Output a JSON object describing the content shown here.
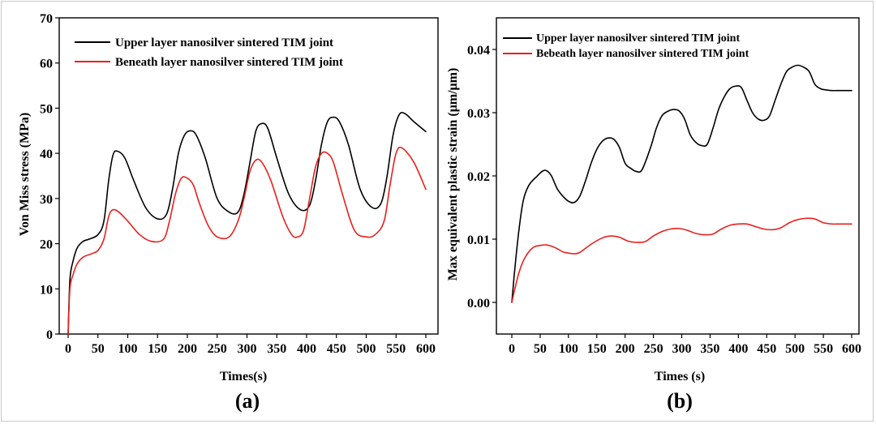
{
  "chart_data": [
    {
      "type": "line",
      "panel_label": "(a)",
      "xlabel": "Times(s)",
      "ylabel": "Von Miss stress (MPa)",
      "xlim": [
        0,
        600
      ],
      "ylim": [
        0,
        70
      ],
      "xticks": [
        "0",
        "50",
        "100",
        "150",
        "200",
        "250",
        "300",
        "350",
        "400",
        "450",
        "500",
        "550",
        "600"
      ],
      "yticks": [
        "0",
        "10",
        "20",
        "30",
        "40",
        "50",
        "60",
        "70"
      ],
      "legend_position": "top",
      "series": [
        {
          "name": "Upper layer nanosilver sintered TIM joint",
          "color": "#000000",
          "x": [
            0,
            3,
            8,
            15,
            25,
            35,
            50,
            60,
            68,
            75,
            82,
            95,
            110,
            130,
            150,
            165,
            175,
            185,
            195,
            205,
            215,
            230,
            250,
            270,
            285,
            295,
            305,
            315,
            325,
            335,
            350,
            370,
            390,
            405,
            415,
            425,
            435,
            445,
            455,
            470,
            490,
            510,
            525,
            535,
            545,
            555,
            565,
            580,
            600
          ],
          "y": [
            0,
            12,
            16,
            19,
            20.5,
            21,
            22,
            25,
            34,
            39.5,
            40.5,
            39,
            34,
            28,
            25.5,
            26.5,
            32,
            40,
            44,
            45,
            44,
            39,
            30,
            27,
            27,
            31,
            38,
            45,
            46.6,
            45.5,
            39,
            31,
            27.5,
            28.5,
            34,
            42,
            47,
            48,
            47,
            42,
            32,
            28,
            29,
            35,
            44,
            48.5,
            48.8,
            47,
            44.8
          ]
        },
        {
          "name": "Beneath layer nanosilver sintered TIM joint",
          "color": "#e8201e",
          "x": [
            0,
            3,
            8,
            15,
            25,
            40,
            50,
            60,
            68,
            75,
            85,
            100,
            120,
            140,
            160,
            170,
            180,
            190,
            200,
            210,
            220,
            235,
            250,
            270,
            285,
            295,
            305,
            315,
            325,
            340,
            360,
            375,
            385,
            395,
            405,
            415,
            425,
            435,
            445,
            460,
            480,
            500,
            515,
            530,
            540,
            550,
            560,
            580,
            600
          ],
          "y": [
            0,
            10,
            13,
            15.5,
            17,
            17.8,
            18.5,
            21,
            26,
            27.5,
            27,
            25,
            22,
            20.5,
            21,
            25,
            31,
            34.5,
            34.5,
            33,
            29,
            24,
            21.5,
            21.5,
            25,
            30,
            36,
            38.5,
            38,
            34,
            26,
            22,
            21.5,
            23,
            30,
            37,
            40,
            40,
            38,
            31,
            23,
            21.5,
            22,
            25,
            33,
            40,
            41.2,
            38,
            32
          ]
        }
      ]
    },
    {
      "type": "line",
      "panel_label": "(b)",
      "xlabel": "Times (s)",
      "ylabel": "Max equivalent plastic strain (μm/μm)",
      "xlim": [
        0,
        600
      ],
      "ylim": [
        -0.005,
        0.045
      ],
      "xticks": [
        "0",
        "50",
        "100",
        "150",
        "200",
        "250",
        "300",
        "350",
        "400",
        "450",
        "500",
        "550",
        "600"
      ],
      "yticks": [
        "0.00",
        "0.01",
        "0.02",
        "0.03",
        "0.04"
      ],
      "legend_position": "top-left",
      "series": [
        {
          "name": "Upper layer nanosilver sintered TIM joint",
          "color": "#000000",
          "x": [
            0,
            5,
            12,
            20,
            30,
            45,
            55,
            62,
            70,
            80,
            90,
            100,
            110,
            120,
            130,
            140,
            150,
            160,
            170,
            180,
            190,
            200,
            210,
            220,
            230,
            245,
            255,
            265,
            275,
            285,
            295,
            305,
            315,
            325,
            335,
            345,
            355,
            365,
            375,
            385,
            395,
            405,
            415,
            425,
            435,
            445,
            455,
            465,
            475,
            485,
            495,
            505,
            515,
            525,
            535,
            545,
            555,
            565,
            580,
            600
          ],
          "y": [
            0,
            0.005,
            0.011,
            0.016,
            0.0185,
            0.02,
            0.0208,
            0.0208,
            0.02,
            0.018,
            0.0168,
            0.016,
            0.0158,
            0.0168,
            0.0192,
            0.022,
            0.0242,
            0.0255,
            0.026,
            0.0258,
            0.0245,
            0.022,
            0.0212,
            0.0207,
            0.021,
            0.0245,
            0.0275,
            0.0295,
            0.0302,
            0.0305,
            0.0303,
            0.029,
            0.0265,
            0.0253,
            0.0248,
            0.025,
            0.0275,
            0.0305,
            0.0325,
            0.0338,
            0.0342,
            0.034,
            0.032,
            0.03,
            0.029,
            0.0288,
            0.0295,
            0.032,
            0.0345,
            0.0365,
            0.0372,
            0.0375,
            0.0372,
            0.0365,
            0.0345,
            0.0338,
            0.0336,
            0.0335,
            0.0335,
            0.0335
          ]
        },
        {
          "name": "Bebeath layer nanosilver sintered TIM joint",
          "color": "#e8201e",
          "x": [
            0,
            5,
            12,
            20,
            30,
            40,
            50,
            60,
            70,
            80,
            90,
            100,
            110,
            120,
            140,
            160,
            175,
            190,
            205,
            220,
            235,
            250,
            265,
            280,
            295,
            310,
            325,
            340,
            355,
            370,
            385,
            400,
            415,
            430,
            445,
            460,
            475,
            490,
            505,
            520,
            535,
            550,
            565,
            580,
            600
          ],
          "y": [
            0,
            0.002,
            0.0045,
            0.0065,
            0.008,
            0.0088,
            0.009,
            0.0091,
            0.0089,
            0.0085,
            0.008,
            0.0078,
            0.0077,
            0.0079,
            0.0092,
            0.0102,
            0.0105,
            0.0103,
            0.0097,
            0.0095,
            0.0096,
            0.0105,
            0.0112,
            0.0116,
            0.0117,
            0.0114,
            0.0109,
            0.0107,
            0.0108,
            0.0116,
            0.0122,
            0.0124,
            0.0124,
            0.012,
            0.0116,
            0.0115,
            0.0118,
            0.0126,
            0.0131,
            0.0133,
            0.0132,
            0.0126,
            0.0124,
            0.0124,
            0.0124
          ]
        }
      ]
    }
  ]
}
